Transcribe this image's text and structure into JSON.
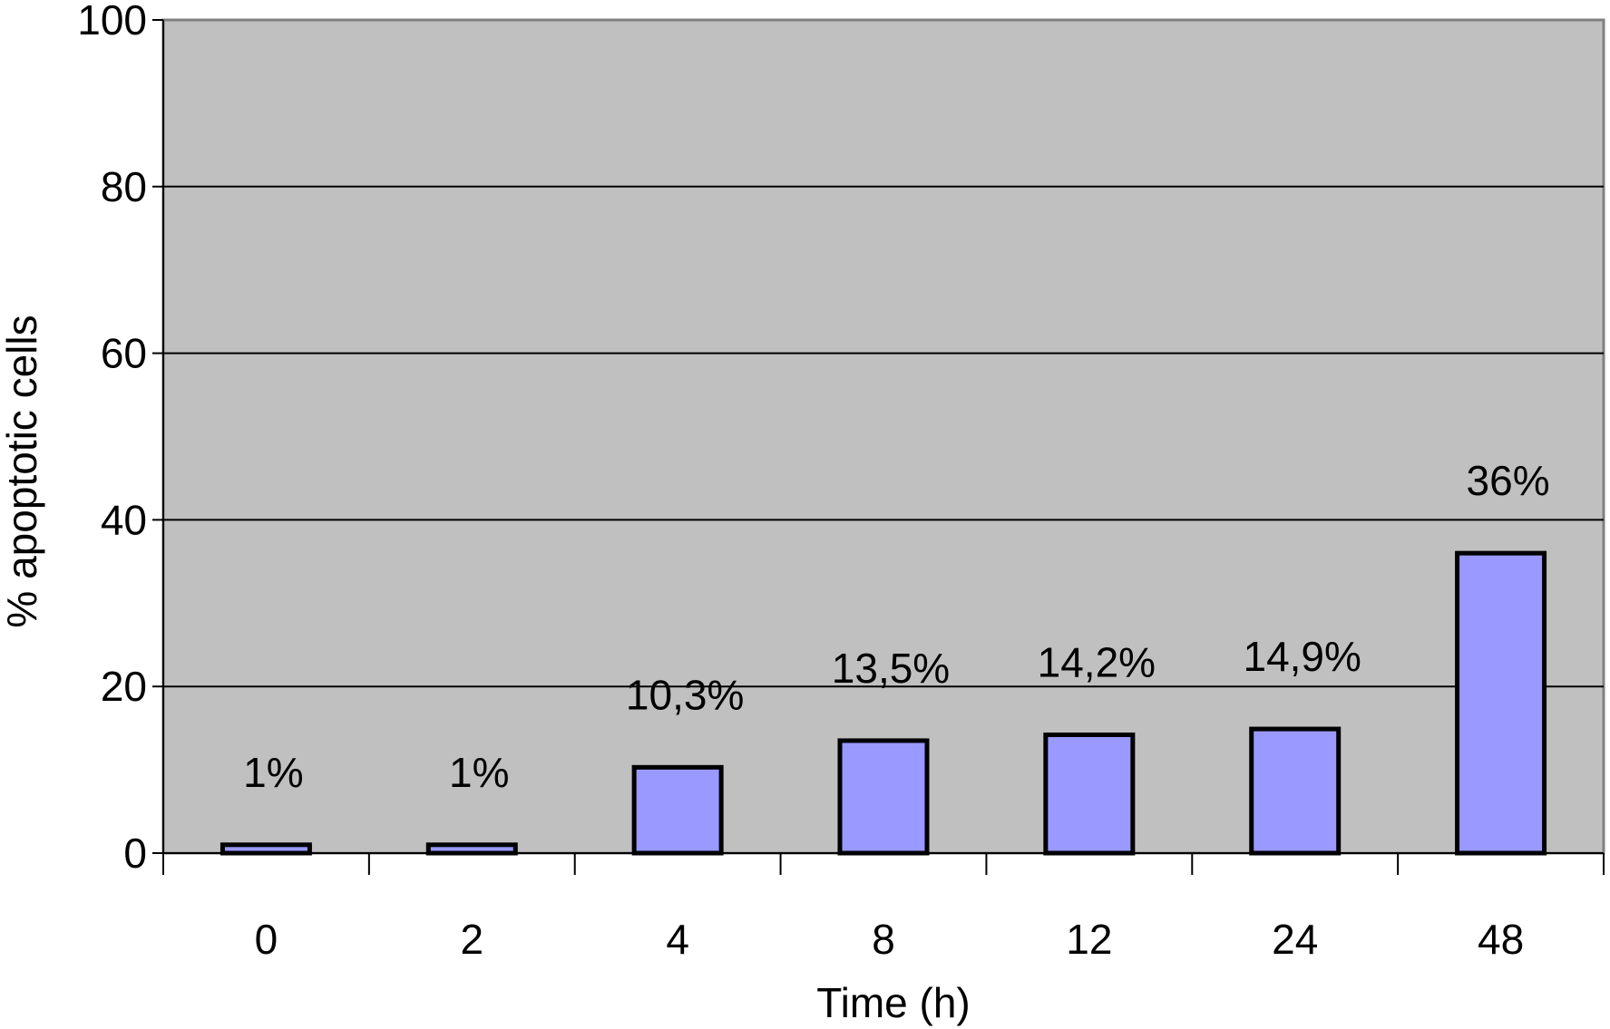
{
  "chart_data": {
    "type": "bar",
    "title": "",
    "xlabel": "Time (h)",
    "ylabel": "% apoptotic cells",
    "categories": [
      "0",
      "2",
      "4",
      "8",
      "12",
      "24",
      "48"
    ],
    "values": [
      1,
      1,
      10.3,
      13.5,
      14.2,
      14.9,
      36
    ],
    "data_labels": [
      "1%",
      "1%",
      "10,3%",
      "13,5%",
      "14,2%",
      "14,9%",
      "36%"
    ],
    "ylim": [
      0,
      100
    ],
    "yticks": [
      0,
      20,
      40,
      60,
      80,
      100
    ],
    "ytick_labels": [
      "0",
      "20",
      "40",
      "60",
      "80",
      "100"
    ],
    "grid": true,
    "legend": "none",
    "colors": {
      "plot_background": "#c0c0c0",
      "bar_fill": "#9999ff",
      "bar_stroke": "#000000",
      "gridline": "#000000"
    }
  }
}
